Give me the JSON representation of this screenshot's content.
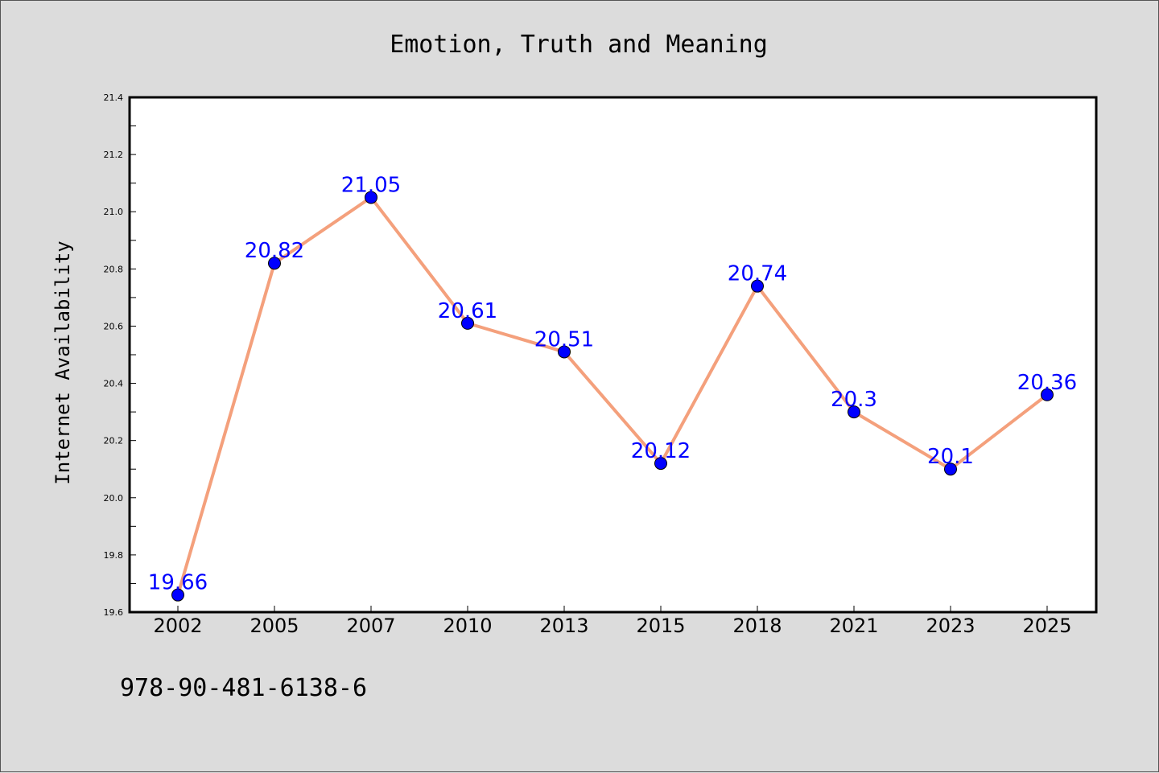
{
  "colors": {
    "background": "#dcdcdc",
    "plot_background": "#ffffff",
    "line": "#f4a07c",
    "marker": "#0000ff",
    "label": "#0000ff",
    "text": "#000000"
  },
  "isbn": "978-90-481-6138-6",
  "chart_data": {
    "type": "line",
    "title": "Emotion, Truth and Meaning",
    "xlabel": "",
    "ylabel": "Internet Availability",
    "categories": [
      "2002",
      "2005",
      "2007",
      "2010",
      "2013",
      "2015",
      "2018",
      "2021",
      "2023",
      "2025"
    ],
    "values": [
      19.66,
      20.82,
      21.05,
      20.61,
      20.51,
      20.12,
      20.74,
      20.3,
      20.1,
      20.36
    ],
    "data_labels": [
      "19.66",
      "20.82",
      "21.05",
      "20.61",
      "20.51",
      "20.12",
      "20.74",
      "20.3",
      "20.1",
      "20.36"
    ],
    "ylim": [
      19.6,
      21.4
    ],
    "yticks": [
      19.6,
      19.8,
      20.0,
      20.2,
      20.4,
      20.6,
      20.8,
      21.0,
      21.2,
      21.4
    ],
    "ytick_labels": [
      "19.6",
      "19.8",
      "20.0",
      "20.2",
      "20.4",
      "20.6",
      "20.8",
      "21.0",
      "21.2",
      "21.4"
    ],
    "grid": false,
    "legend": "none"
  }
}
